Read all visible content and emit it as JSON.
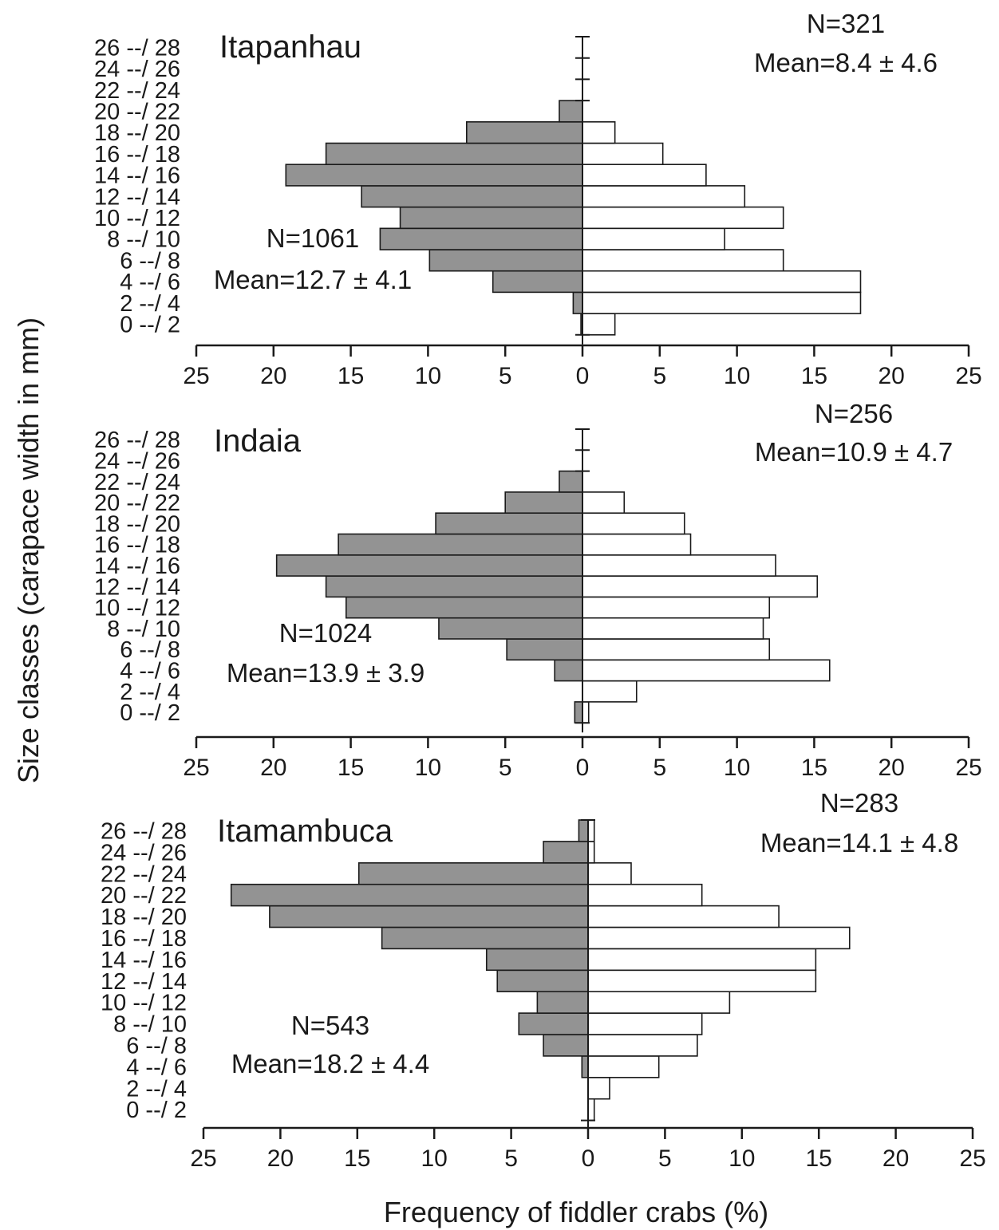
{
  "colors": {
    "left_fill": "#939393",
    "right_fill": "#ffffff",
    "stroke": "#1a1a1a"
  },
  "axes": {
    "ylabel": "Size classes (carapace width in mm)",
    "xlabel": "Frequency of fiddler crabs (%)"
  },
  "chart_data": [
    {
      "type": "bar",
      "orientation": "horizontal-butterfly",
      "title": "Itapanhau",
      "categories": [
        "0 --/ 2",
        "2 --/ 4",
        "4 --/ 6",
        "6 --/ 8",
        "8 --/ 10",
        "10 --/ 12",
        "12 --/ 14",
        "14 --/ 16",
        "16 --/ 18",
        "18 --/ 20",
        "20 --/ 22",
        "22 --/ 24",
        "24 --/ 26",
        "26 --/ 28"
      ],
      "xlim": [
        -25,
        25
      ],
      "xticks": [
        25,
        20,
        15,
        10,
        5,
        0,
        5,
        10,
        15,
        20,
        25
      ],
      "series": [
        {
          "side": "left",
          "n_label": "N=1061",
          "mean_label": "Mean=12.7 ± 4.1",
          "values": [
            0.1,
            0.6,
            5.8,
            9.9,
            13.1,
            11.8,
            14.3,
            19.2,
            16.6,
            7.5,
            1.5,
            0,
            0,
            0
          ]
        },
        {
          "side": "right",
          "n_label": "N=321",
          "mean_label": "Mean=8.4 ± 4.6",
          "values": [
            2.1,
            18.0,
            18.0,
            13.0,
            9.2,
            13.0,
            10.5,
            8.0,
            5.2,
            2.1,
            0,
            0,
            0,
            0
          ]
        }
      ]
    },
    {
      "type": "bar",
      "orientation": "horizontal-butterfly",
      "title": "Indaia",
      "categories": [
        "0 --/ 2",
        "2 --/ 4",
        "4 --/ 6",
        "6 --/ 8",
        "8 --/ 10",
        "10 --/ 12",
        "12 --/ 14",
        "14 --/ 16",
        "16 --/ 18",
        "18 --/ 20",
        "20 --/ 22",
        "22 --/ 24",
        "24 --/ 26",
        "26 --/ 28"
      ],
      "xlim": [
        -25,
        25
      ],
      "xticks": [
        25,
        20,
        15,
        10,
        5,
        0,
        5,
        10,
        15,
        20,
        25
      ],
      "series": [
        {
          "side": "left",
          "n_label": "N=1024",
          "mean_label": "Mean=13.9 ± 3.9",
          "values": [
            0.5,
            0,
            1.8,
            4.9,
            9.3,
            15.3,
            16.6,
            19.8,
            15.8,
            9.5,
            5.0,
            1.5,
            0,
            0
          ]
        },
        {
          "side": "right",
          "n_label": "N=256",
          "mean_label": "Mean=10.9 ± 4.7",
          "values": [
            0.4,
            3.5,
            16.0,
            12.1,
            11.7,
            12.1,
            15.2,
            12.5,
            7.0,
            6.6,
            2.7,
            0,
            0,
            0
          ]
        }
      ]
    },
    {
      "type": "bar",
      "orientation": "horizontal-butterfly",
      "title": "Itamambuca",
      "categories": [
        "0 --/ 2",
        "2 --/ 4",
        "4 --/ 6",
        "6 --/ 8",
        "8 --/ 10",
        "10 --/ 12",
        "12 --/ 14",
        "14 --/ 16",
        "16 --/ 18",
        "18 --/ 20",
        "20 --/ 22",
        "22 --/ 24",
        "24 --/ 26",
        "26 --/ 28"
      ],
      "xlim": [
        -25,
        25
      ],
      "xticks": [
        25,
        20,
        15,
        10,
        5,
        0,
        5,
        10,
        15,
        20,
        25
      ],
      "series": [
        {
          "side": "left",
          "n_label": "N=543",
          "mean_label": "Mean=18.2 ± 4.4",
          "values": [
            0,
            0,
            0.4,
            2.9,
            4.5,
            3.3,
            5.9,
            6.6,
            13.4,
            20.7,
            23.2,
            14.9,
            2.9,
            0.6
          ]
        },
        {
          "side": "right",
          "n_label": "N=283",
          "mean_label": "Mean=14.1 ± 4.8",
          "values": [
            0.4,
            1.4,
            4.6,
            7.1,
            7.4,
            9.2,
            14.8,
            14.8,
            17.0,
            12.4,
            7.4,
            2.8,
            0.4,
            0.4
          ]
        }
      ]
    }
  ]
}
